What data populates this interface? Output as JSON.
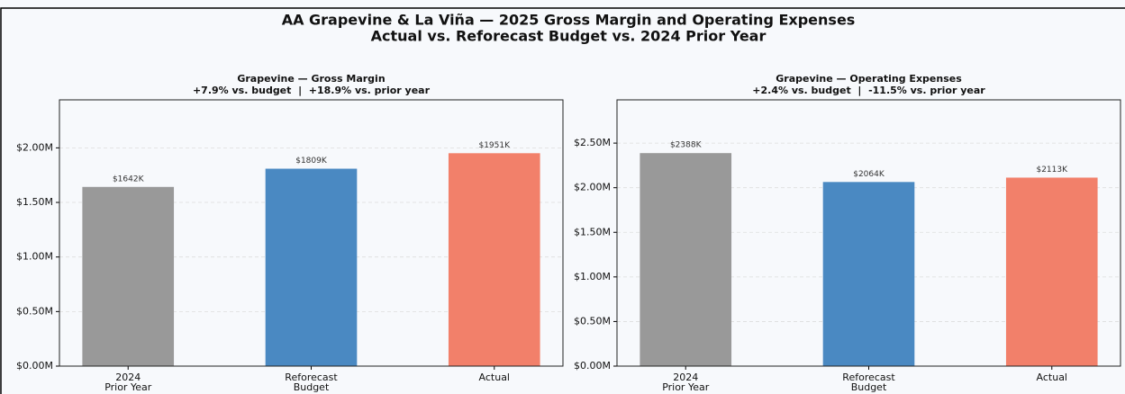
{
  "title": "AA Grapevine & La Viña — 2025 Gross Margin and Operating Expenses",
  "subtitle": "Actual vs. Reforecast Budget vs. 2024 Prior Year",
  "chart_data": [
    {
      "type": "bar",
      "title": "Grapevine — Gross Margin",
      "subtitle": "+7.9% vs. budget  |  +18.9% vs. prior year",
      "categories": [
        "2024\nPrior Year",
        "Reforecast\nBudget",
        "Actual"
      ],
      "values": [
        1642000,
        1809000,
        1951000
      ],
      "value_labels": [
        "$1642K",
        "$1809K",
        "$1951K"
      ],
      "colors": [
        "#999999",
        "#4a89c2",
        "#f2806a"
      ],
      "ylim": [
        0,
        2440000
      ],
      "yticks": [
        {
          "value": 0,
          "label": "$0.00M"
        },
        {
          "value": 500000,
          "label": "$0.50M"
        },
        {
          "value": 1000000,
          "label": "$1.00M"
        },
        {
          "value": 1500000,
          "label": "$1.50M"
        },
        {
          "value": 2000000,
          "label": "$2.00M"
        }
      ],
      "grid": true
    },
    {
      "type": "bar",
      "title": "Grapevine — Operating Expenses",
      "subtitle": "+2.4% vs. budget  |  -11.5% vs. prior year",
      "categories": [
        "2024\nPrior Year",
        "Reforecast\nBudget",
        "Actual"
      ],
      "values": [
        2388000,
        2064000,
        2113000
      ],
      "value_labels": [
        "$2388K",
        "$2064K",
        "$2113K"
      ],
      "colors": [
        "#999999",
        "#4a89c2",
        "#f2806a"
      ],
      "ylim": [
        0,
        2985000
      ],
      "yticks": [
        {
          "value": 0,
          "label": "$0.00M"
        },
        {
          "value": 500000,
          "label": "$0.50M"
        },
        {
          "value": 1000000,
          "label": "$1.00M"
        },
        {
          "value": 1500000,
          "label": "$1.50M"
        },
        {
          "value": 2000000,
          "label": "$2.00M"
        },
        {
          "value": 2500000,
          "label": "$2.50M"
        }
      ],
      "grid": true
    }
  ]
}
